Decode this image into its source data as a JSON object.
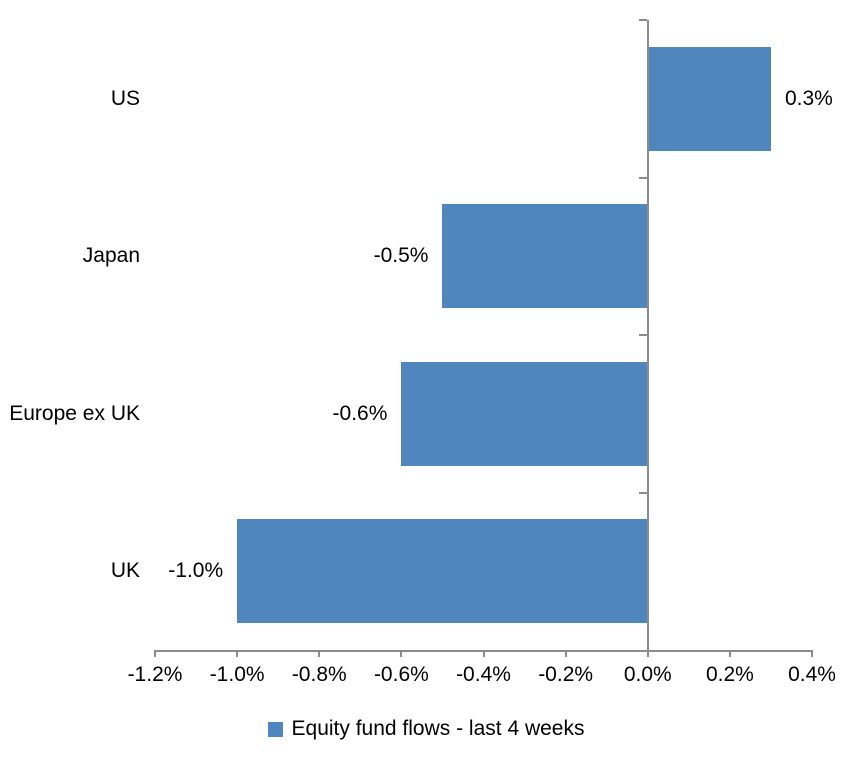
{
  "chart_data": {
    "type": "bar",
    "orientation": "horizontal",
    "title": "",
    "xlabel": "",
    "ylabel": "",
    "categories": [
      "US",
      "Japan",
      "Europe ex UK",
      "UK"
    ],
    "series": [
      {
        "name": "Equity fund flows - last 4 weeks",
        "values": [
          0.3,
          -0.5,
          -0.6,
          -1.0
        ],
        "value_labels": [
          "0.3%",
          "-0.5%",
          "-0.6%",
          "-1.0%"
        ]
      }
    ],
    "xlim": [
      -1.2,
      0.4
    ],
    "x_tick_values": [
      -1.2,
      -1.0,
      -0.8,
      -0.6,
      -0.4,
      -0.2,
      0.0,
      0.2,
      0.4
    ],
    "x_tick_labels": [
      "-1.2%",
      "-1.0%",
      "-0.8%",
      "-0.6%",
      "-0.4%",
      "-0.2%",
      "0.0%",
      "0.2%",
      "0.4%"
    ],
    "grid": false,
    "legend_position": "bottom-center",
    "legend_label": "Equity fund flows - last 4 weeks",
    "colors": {
      "bar": "#4E86BD",
      "axis": "#8C8C8C",
      "text": "#000000",
      "background": "#FFFFFF"
    }
  }
}
